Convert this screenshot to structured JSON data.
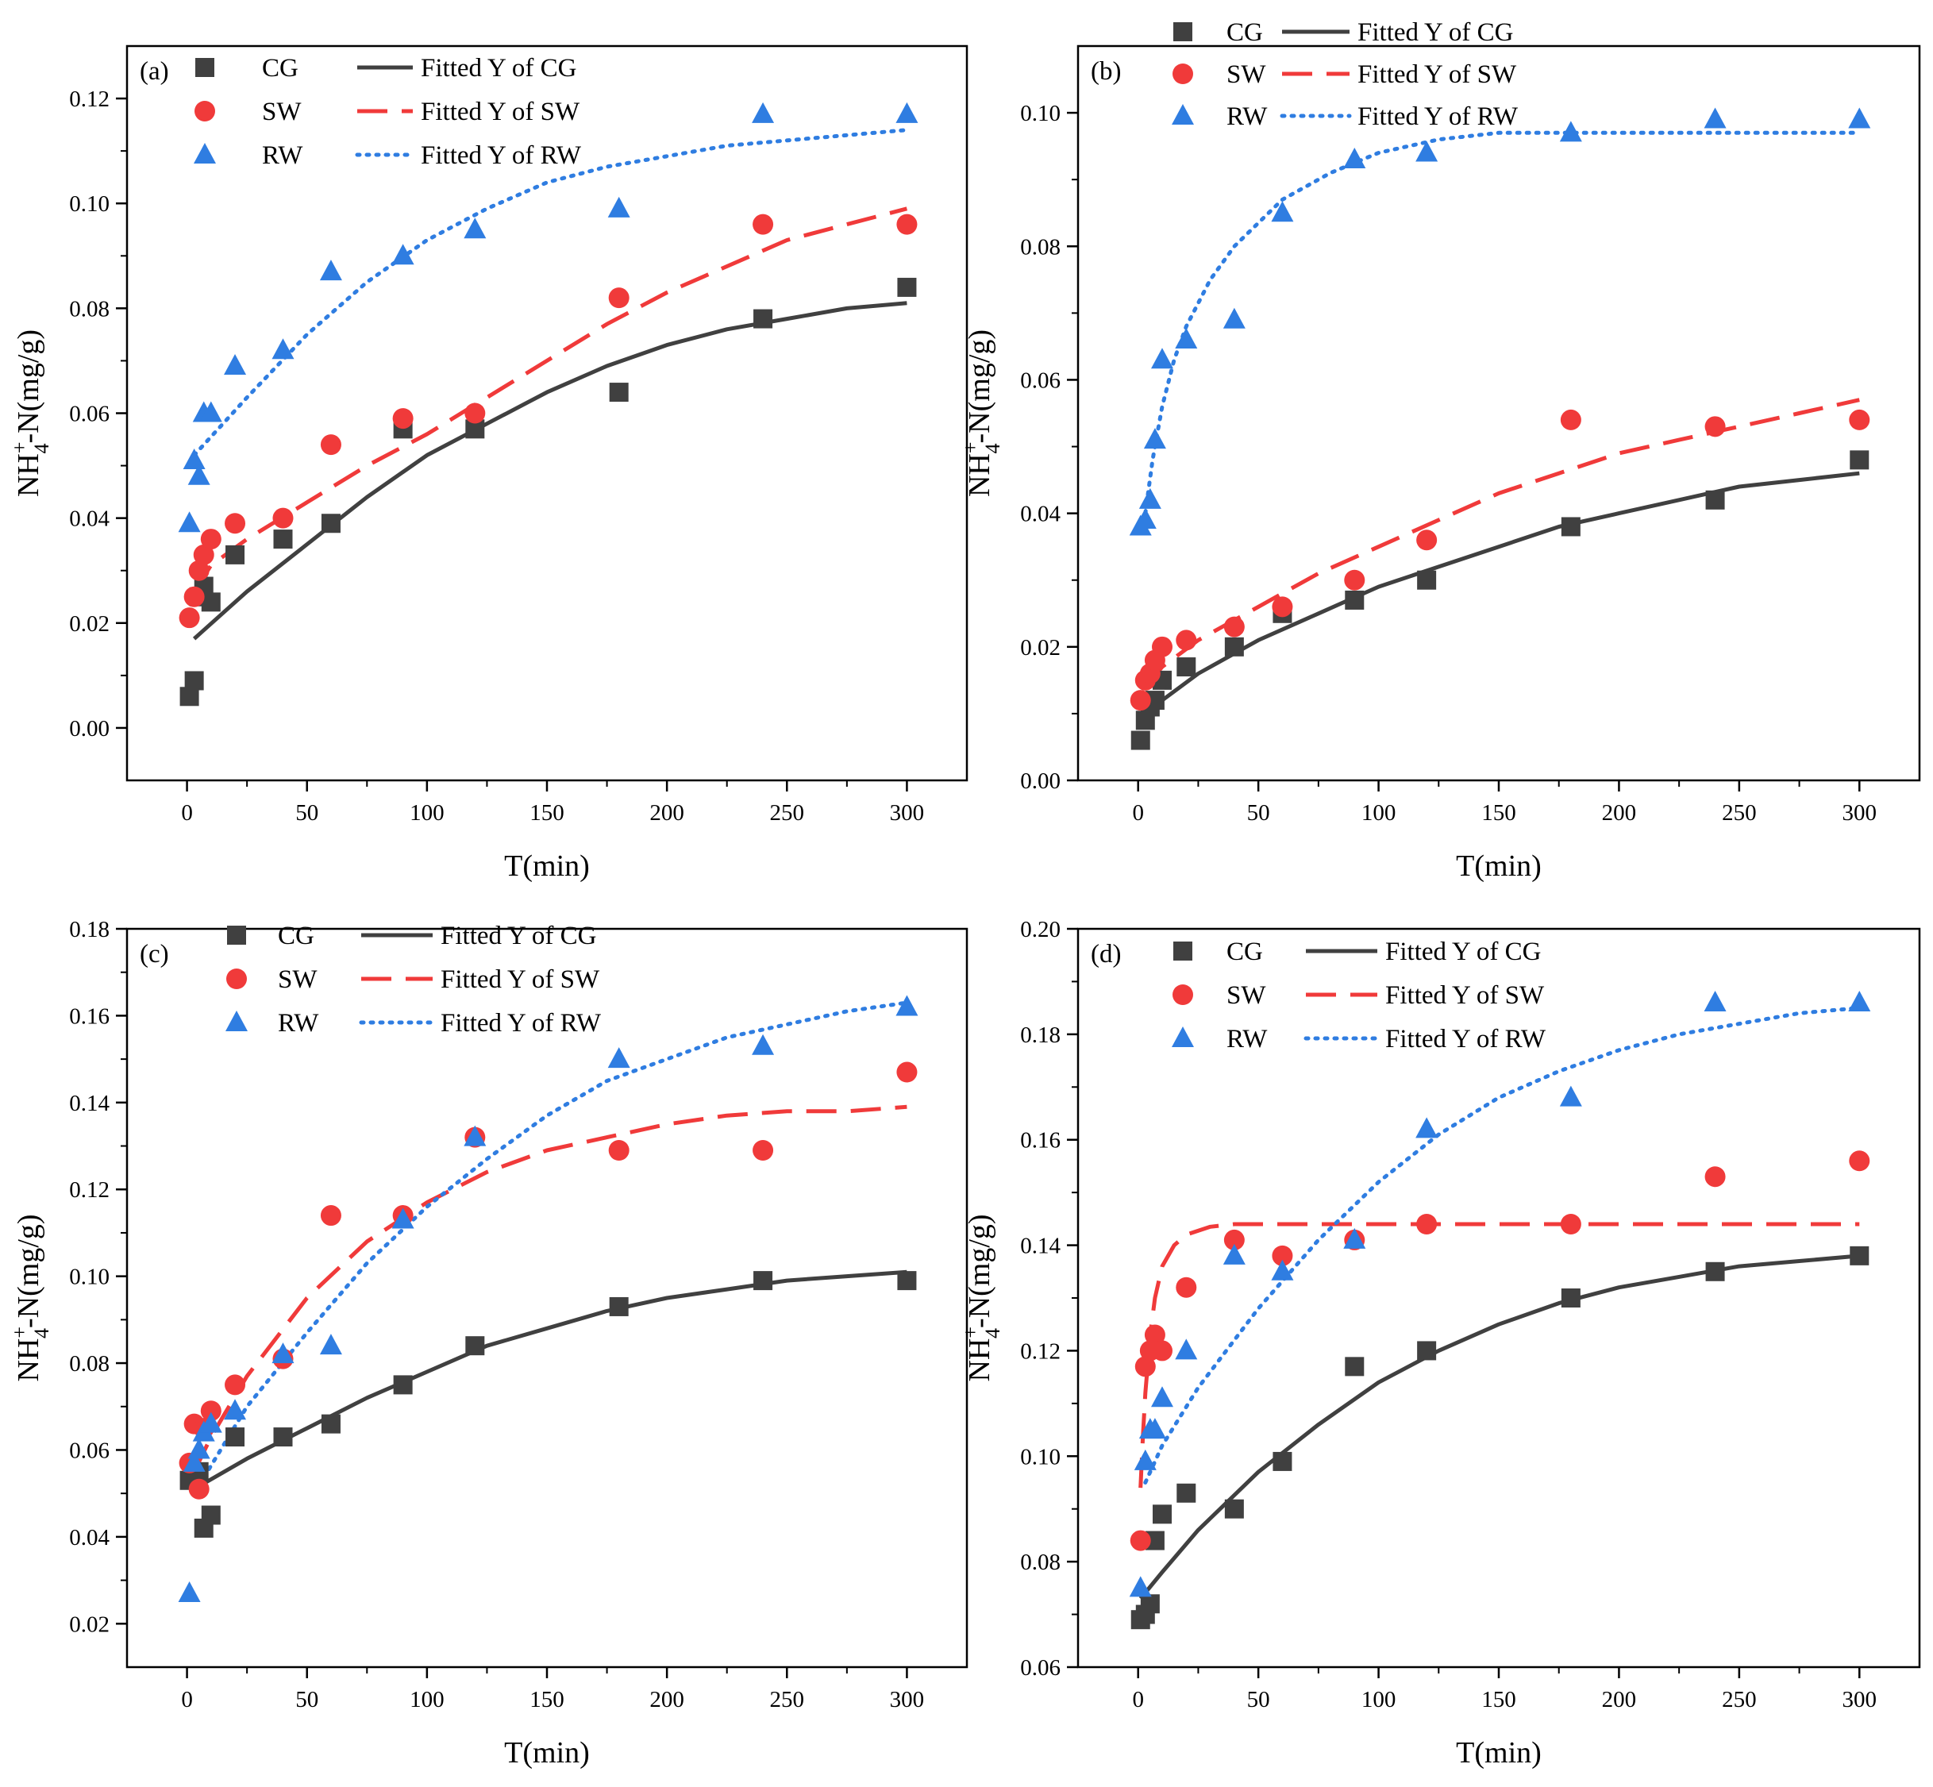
{
  "colors": {
    "CG": "#404040",
    "SW": "#f03a3a",
    "RW": "#2f7de1",
    "axis": "#000000"
  },
  "chart_data": [
    {
      "type": "scatter",
      "panel_label": "(a)",
      "xlabel": "T(min)",
      "ylabel": "NH4+-N(mg/g)",
      "xlim": [
        -25,
        325
      ],
      "ylim": [
        -0.01,
        0.13
      ],
      "xticks": [
        0,
        50,
        100,
        150,
        200,
        250,
        300
      ],
      "yticks": [
        0,
        0.02,
        0.04,
        0.06,
        0.08,
        0.1,
        0.12
      ],
      "ytick_decimals": 2,
      "legend_position": "top-left",
      "legend_layout": "grid",
      "series": [
        {
          "name": "CG",
          "marker": "square",
          "x": [
            1,
            3,
            5,
            7,
            10,
            20,
            40,
            60,
            90,
            120,
            180,
            240,
            300
          ],
          "y": [
            0.006,
            0.009,
            0.025,
            0.027,
            0.024,
            0.033,
            0.036,
            0.039,
            0.057,
            0.057,
            0.064,
            0.078,
            0.084
          ]
        },
        {
          "name": "SW",
          "marker": "circle",
          "x": [
            1,
            3,
            5,
            7,
            10,
            20,
            40,
            60,
            90,
            120,
            180,
            240,
            300
          ],
          "y": [
            0.021,
            0.025,
            0.03,
            0.033,
            0.036,
            0.039,
            0.04,
            0.054,
            0.059,
            0.06,
            0.082,
            0.096,
            0.096
          ]
        },
        {
          "name": "RW",
          "marker": "triangle",
          "x": [
            1,
            3,
            5,
            7,
            10,
            20,
            40,
            60,
            90,
            120,
            180,
            240,
            300
          ],
          "y": [
            0.039,
            0.051,
            0.048,
            0.06,
            0.06,
            0.069,
            0.072,
            0.087,
            0.09,
            0.095,
            0.099,
            0.117,
            0.117
          ]
        }
      ],
      "fits": [
        {
          "name": "Fitted Y of CG",
          "of": "CG",
          "style": "solid",
          "x": [
            3,
            25,
            50,
            75,
            100,
            125,
            150,
            175,
            200,
            225,
            250,
            275,
            300
          ],
          "y": [
            0.017,
            0.026,
            0.035,
            0.044,
            0.052,
            0.058,
            0.064,
            0.069,
            0.073,
            0.076,
            0.078,
            0.08,
            0.081
          ]
        },
        {
          "name": "Fitted Y of SW",
          "of": "SW",
          "style": "dash",
          "x": [
            3,
            10,
            25,
            50,
            75,
            100,
            125,
            150,
            175,
            200,
            225,
            250,
            275,
            300
          ],
          "y": [
            0.026,
            0.031,
            0.036,
            0.043,
            0.05,
            0.056,
            0.063,
            0.07,
            0.077,
            0.083,
            0.088,
            0.093,
            0.096,
            0.099
          ]
        },
        {
          "name": "Fitted Y of RW",
          "of": "RW",
          "style": "dot",
          "x": [
            3,
            25,
            50,
            75,
            100,
            125,
            150,
            175,
            200,
            225,
            250,
            275,
            300
          ],
          "y": [
            0.052,
            0.063,
            0.075,
            0.085,
            0.093,
            0.099,
            0.104,
            0.107,
            0.109,
            0.111,
            0.112,
            0.113,
            0.114
          ]
        }
      ]
    },
    {
      "type": "scatter",
      "panel_label": "(b)",
      "xlabel": "T(min)",
      "ylabel": "NH4+-N(mg/g)",
      "xlim": [
        -25,
        325
      ],
      "ylim": [
        0,
        0.11
      ],
      "xticks": [
        0,
        50,
        100,
        150,
        200,
        250,
        300
      ],
      "yticks": [
        0,
        0.02,
        0.04,
        0.06,
        0.08,
        0.1
      ],
      "ytick_decimals": 2,
      "legend_position": "top",
      "legend_layout": "grid",
      "series": [
        {
          "name": "CG",
          "marker": "square",
          "x": [
            1,
            3,
            5,
            7,
            10,
            20,
            40,
            60,
            90,
            120,
            180,
            240,
            300
          ],
          "y": [
            0.006,
            0.009,
            0.011,
            0.012,
            0.015,
            0.017,
            0.02,
            0.025,
            0.027,
            0.03,
            0.038,
            0.042,
            0.048
          ]
        },
        {
          "name": "SW",
          "marker": "circle",
          "x": [
            1,
            3,
            5,
            7,
            10,
            20,
            40,
            60,
            90,
            120,
            180,
            240,
            300
          ],
          "y": [
            0.012,
            0.015,
            0.016,
            0.018,
            0.02,
            0.021,
            0.023,
            0.026,
            0.03,
            0.036,
            0.054,
            0.053,
            0.054
          ]
        },
        {
          "name": "RW",
          "marker": "triangle",
          "x": [
            1,
            3,
            5,
            7,
            10,
            20,
            40,
            60,
            90,
            120,
            180,
            240,
            300
          ],
          "y": [
            0.038,
            0.039,
            0.042,
            0.051,
            0.063,
            0.066,
            0.069,
            0.085,
            0.093,
            0.094,
            0.097,
            0.099,
            0.099
          ]
        }
      ],
      "fits": [
        {
          "name": "Fitted Y of CG",
          "of": "CG",
          "style": "solid",
          "x": [
            3,
            10,
            25,
            50,
            75,
            100,
            125,
            150,
            175,
            200,
            225,
            250,
            275,
            300
          ],
          "y": [
            0.01,
            0.012,
            0.016,
            0.021,
            0.025,
            0.029,
            0.032,
            0.035,
            0.038,
            0.04,
            0.042,
            0.044,
            0.045,
            0.046
          ]
        },
        {
          "name": "Fitted Y of SW",
          "of": "SW",
          "style": "dash",
          "x": [
            3,
            10,
            25,
            50,
            75,
            100,
            125,
            150,
            175,
            200,
            225,
            250,
            275,
            300
          ],
          "y": [
            0.014,
            0.017,
            0.021,
            0.026,
            0.031,
            0.035,
            0.039,
            0.043,
            0.046,
            0.049,
            0.051,
            0.053,
            0.055,
            0.057
          ]
        },
        {
          "name": "Fitted Y of RW",
          "of": "RW",
          "style": "dot",
          "x": [
            3,
            6,
            10,
            15,
            20,
            30,
            40,
            60,
            80,
            100,
            125,
            150,
            175,
            200,
            250,
            300
          ],
          "y": [
            0.04,
            0.048,
            0.056,
            0.063,
            0.068,
            0.075,
            0.08,
            0.087,
            0.091,
            0.094,
            0.096,
            0.097,
            0.097,
            0.097,
            0.097,
            0.097
          ]
        }
      ]
    },
    {
      "type": "scatter",
      "panel_label": "(c)",
      "xlabel": "T(min)",
      "ylabel": "NH4+-N(mg/g)",
      "xlim": [
        -25,
        325
      ],
      "ylim": [
        0.01,
        0.18
      ],
      "xticks": [
        0,
        50,
        100,
        150,
        200,
        250,
        300
      ],
      "yticks": [
        0.02,
        0.04,
        0.06,
        0.08,
        0.1,
        0.12,
        0.14,
        0.16,
        0.18
      ],
      "ytick_decimals": 2,
      "legend_position": "top-left",
      "legend_layout": "grid",
      "series": [
        {
          "name": "CG",
          "marker": "square",
          "x": [
            1,
            3,
            5,
            7,
            10,
            20,
            40,
            60,
            90,
            120,
            180,
            240,
            300
          ],
          "y": [
            0.053,
            0.054,
            0.055,
            0.042,
            0.045,
            0.063,
            0.063,
            0.066,
            0.075,
            0.084,
            0.093,
            0.099,
            0.099
          ]
        },
        {
          "name": "SW",
          "marker": "circle",
          "x": [
            1,
            3,
            5,
            7,
            10,
            20,
            40,
            60,
            90,
            120,
            180,
            240,
            300
          ],
          "y": [
            0.057,
            0.066,
            0.051,
            0.065,
            0.069,
            0.075,
            0.081,
            0.114,
            0.114,
            0.132,
            0.129,
            0.129,
            0.147
          ]
        },
        {
          "name": "RW",
          "marker": "triangle",
          "x": [
            1,
            3,
            5,
            7,
            10,
            20,
            40,
            60,
            90,
            120,
            180,
            240,
            300
          ],
          "y": [
            0.027,
            0.057,
            0.06,
            0.064,
            0.066,
            0.069,
            0.082,
            0.084,
            0.113,
            0.132,
            0.15,
            0.153,
            0.162
          ]
        }
      ],
      "fits": [
        {
          "name": "Fitted Y of CG",
          "of": "CG",
          "style": "solid",
          "x": [
            3,
            25,
            50,
            75,
            100,
            125,
            150,
            175,
            200,
            225,
            250,
            275,
            300
          ],
          "y": [
            0.051,
            0.058,
            0.065,
            0.072,
            0.078,
            0.084,
            0.088,
            0.092,
            0.095,
            0.097,
            0.099,
            0.1,
            0.101
          ]
        },
        {
          "name": "Fitted Y of SW",
          "of": "SW",
          "style": "dash",
          "x": [
            3,
            10,
            25,
            50,
            75,
            100,
            125,
            150,
            175,
            200,
            225,
            250,
            275,
            300
          ],
          "y": [
            0.055,
            0.063,
            0.077,
            0.095,
            0.108,
            0.117,
            0.124,
            0.129,
            0.132,
            0.135,
            0.137,
            0.138,
            0.138,
            0.139
          ]
        },
        {
          "name": "Fitted Y of RW",
          "of": "RW",
          "style": "dot",
          "x": [
            3,
            25,
            50,
            75,
            100,
            125,
            150,
            175,
            200,
            225,
            250,
            275,
            300
          ],
          "y": [
            0.05,
            0.07,
            0.087,
            0.103,
            0.116,
            0.127,
            0.137,
            0.145,
            0.15,
            0.155,
            0.158,
            0.161,
            0.163
          ]
        }
      ]
    },
    {
      "type": "scatter",
      "panel_label": "(d)",
      "xlabel": "T(min)",
      "ylabel": "NH4+-N(mg/g)",
      "xlim": [
        -25,
        325
      ],
      "ylim": [
        0.06,
        0.2
      ],
      "xticks": [
        0,
        50,
        100,
        150,
        200,
        250,
        300
      ],
      "yticks": [
        0.06,
        0.08,
        0.1,
        0.12,
        0.14,
        0.16,
        0.18,
        0.2
      ],
      "ytick_decimals": 2,
      "legend_position": "top-left",
      "legend_layout": "grid",
      "series": [
        {
          "name": "CG",
          "marker": "square",
          "x": [
            1,
            3,
            5,
            7,
            10,
            20,
            40,
            60,
            90,
            120,
            180,
            240,
            300
          ],
          "y": [
            0.069,
            0.07,
            0.072,
            0.084,
            0.089,
            0.093,
            0.09,
            0.099,
            0.117,
            0.12,
            0.13,
            0.135,
            0.138
          ]
        },
        {
          "name": "SW",
          "marker": "circle",
          "x": [
            1,
            3,
            5,
            7,
            10,
            20,
            40,
            60,
            90,
            120,
            180,
            240,
            300
          ],
          "y": [
            0.084,
            0.117,
            0.12,
            0.123,
            0.12,
            0.132,
            0.141,
            0.138,
            0.141,
            0.144,
            0.144,
            0.153,
            0.156
          ]
        },
        {
          "name": "RW",
          "marker": "triangle",
          "x": [
            1,
            3,
            5,
            7,
            10,
            20,
            40,
            60,
            90,
            120,
            180,
            240,
            300
          ],
          "y": [
            0.075,
            0.099,
            0.105,
            0.105,
            0.111,
            0.12,
            0.138,
            0.135,
            0.141,
            0.162,
            0.168,
            0.186,
            0.186
          ]
        }
      ],
      "fits": [
        {
          "name": "Fitted Y of CG",
          "of": "CG",
          "style": "solid",
          "x": [
            1,
            10,
            25,
            50,
            75,
            100,
            125,
            150,
            175,
            200,
            225,
            250,
            275,
            300
          ],
          "y": [
            0.073,
            0.078,
            0.086,
            0.097,
            0.106,
            0.114,
            0.12,
            0.125,
            0.129,
            0.132,
            0.134,
            0.136,
            0.137,
            0.138
          ]
        },
        {
          "name": "Fitted Y of SW",
          "of": "SW",
          "style": "dash",
          "x": [
            1,
            2,
            3,
            5,
            7,
            10,
            15,
            20,
            30,
            40,
            60,
            100,
            200,
            300
          ],
          "y": [
            0.094,
            0.104,
            0.112,
            0.123,
            0.13,
            0.136,
            0.14,
            0.142,
            0.1435,
            0.144,
            0.144,
            0.144,
            0.144,
            0.144
          ]
        },
        {
          "name": "Fitted Y of RW",
          "of": "RW",
          "style": "dot",
          "x": [
            3,
            10,
            25,
            50,
            75,
            100,
            125,
            150,
            175,
            200,
            225,
            250,
            275,
            300
          ],
          "y": [
            0.095,
            0.102,
            0.113,
            0.128,
            0.141,
            0.152,
            0.161,
            0.168,
            0.173,
            0.177,
            0.18,
            0.182,
            0.184,
            0.185
          ]
        }
      ]
    }
  ]
}
